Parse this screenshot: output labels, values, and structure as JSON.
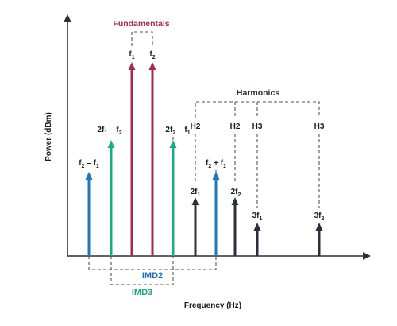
{
  "figure": {
    "y_axis_label": "Power (dBm)",
    "x_axis_label": "Frequency (Hz)",
    "fundamentals_label": "Fundamentals",
    "harmonics_label": "Harmonics",
    "imd2_label": "IMD2",
    "imd3_label": "IMD3"
  },
  "tones": {
    "f2_minus_f1": {
      "main": "f",
      "s1": "2",
      "op": " – ",
      "main2": "f",
      "s2": "1"
    },
    "two_f1_minus_f2": {
      "main": "2f",
      "s1": "1",
      "op": " – ",
      "main2": "f",
      "s2": "2"
    },
    "f1": {
      "main": "f",
      "s1": "1"
    },
    "f2": {
      "main": "f",
      "s1": "2"
    },
    "two_f2_minus_f1": {
      "main": "2f",
      "s1": "2",
      "op": " – ",
      "main2": "f",
      "s2": "1"
    },
    "two_f1": {
      "main": "2f",
      "s1": "1",
      "tag": "H2"
    },
    "f2_plus_f1": {
      "main": "f",
      "s1": "2",
      "op": " + ",
      "main2": "f",
      "s2": "1"
    },
    "two_f2": {
      "main": "2f",
      "s1": "2",
      "tag": "H2"
    },
    "three_f1": {
      "main": "3f",
      "s1": "1",
      "tag": "H3"
    },
    "three_f2": {
      "main": "3f",
      "s1": "2",
      "tag": "H3"
    }
  },
  "colors": {
    "fundamental": "#a8294f",
    "imd3": "#19ad86",
    "imd2": "#1f78b8",
    "harmonic": "#2b2f3a",
    "imd2_text": "#1f6fb0",
    "imd3_text": "#17a77f",
    "fundamentals_text": "#a8294f",
    "axis": "#2b2f3a"
  }
}
